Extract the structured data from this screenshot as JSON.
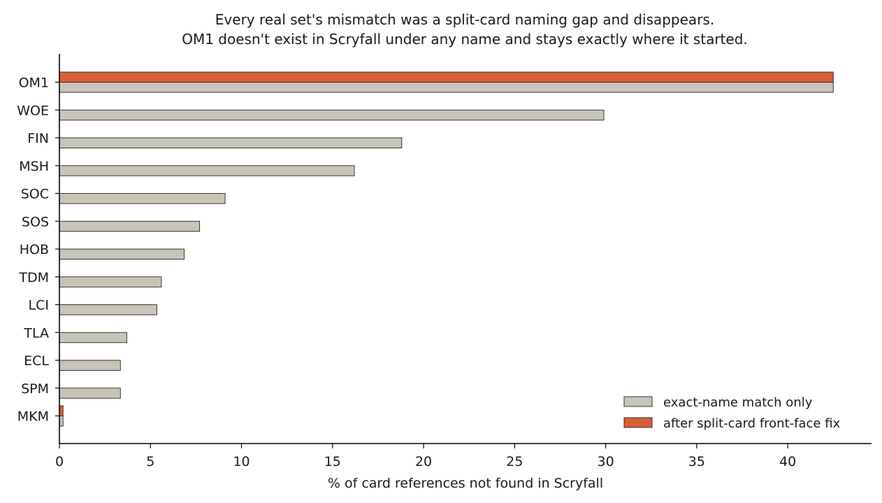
{
  "chart_data": {
    "type": "bar",
    "orientation": "horizontal",
    "title_lines": [
      "Every real set's mismatch was a split-card naming gap and disappears.",
      "OM1 doesn't exist in Scryfall under any name and stays exactly where it started."
    ],
    "xlabel": "% of card references not found in Scryfall",
    "ylabel": "",
    "categories": [
      "OM1",
      "WOE",
      "FIN",
      "MSH",
      "SOC",
      "SOS",
      "HOB",
      "TDM",
      "LCI",
      "TLA",
      "ECL",
      "SPM",
      "MKM"
    ],
    "series": [
      {
        "name": "exact-name match only",
        "color": "#c8c4b8",
        "values": [
          42.5,
          29.9,
          18.8,
          16.2,
          9.1,
          7.7,
          6.85,
          5.6,
          5.35,
          3.7,
          3.35,
          3.35,
          0.2
        ]
      },
      {
        "name": "after split-card front-face fix",
        "color": "#d95f38",
        "values": [
          42.5,
          0,
          0,
          0,
          0,
          0,
          0,
          0,
          0,
          0,
          0,
          0,
          0.2
        ]
      }
    ],
    "xlim": [
      0,
      44.6
    ],
    "xticks": [
      "0",
      "5",
      "10",
      "15",
      "20",
      "25",
      "30",
      "35",
      "40"
    ],
    "grid": false,
    "legend_position": "lower-right"
  }
}
